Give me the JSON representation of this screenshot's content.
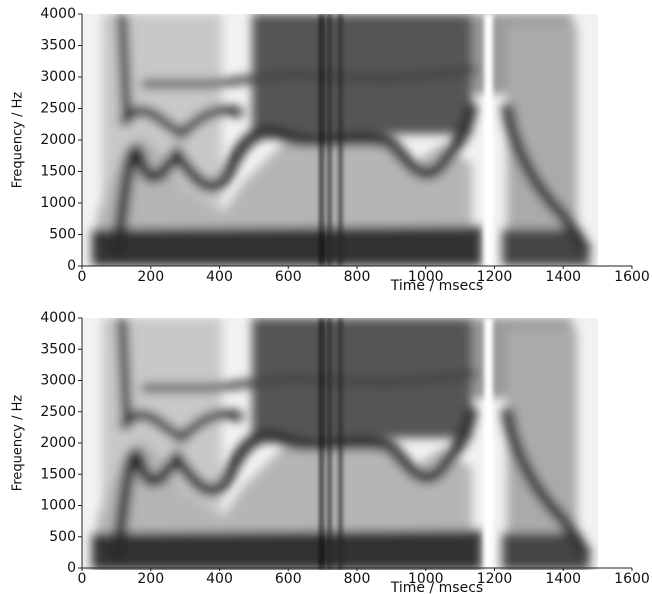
{
  "chart_data": [
    {
      "type": "spectrogram",
      "xlabel": "Time / msecs",
      "ylabel": "Frequency / Hz",
      "xlim": [
        0,
        1600
      ],
      "ylim": [
        0,
        4000
      ],
      "xticks": [
        0,
        200,
        400,
        600,
        800,
        1000,
        1200,
        1400,
        1600
      ],
      "yticks": [
        0,
        500,
        1000,
        1500,
        2000,
        2500,
        3000,
        3500,
        4000
      ]
    },
    {
      "type": "spectrogram",
      "xlabel": "Time / msecs",
      "ylabel": "Frequency / Hz",
      "xlim": [
        0,
        1600
      ],
      "ylim": [
        0,
        4000
      ],
      "xticks": [
        0,
        200,
        400,
        600,
        800,
        1000,
        1200,
        1400,
        1600
      ],
      "yticks": [
        0,
        500,
        1000,
        1500,
        2000,
        2500,
        3000,
        3500,
        4000
      ]
    }
  ]
}
